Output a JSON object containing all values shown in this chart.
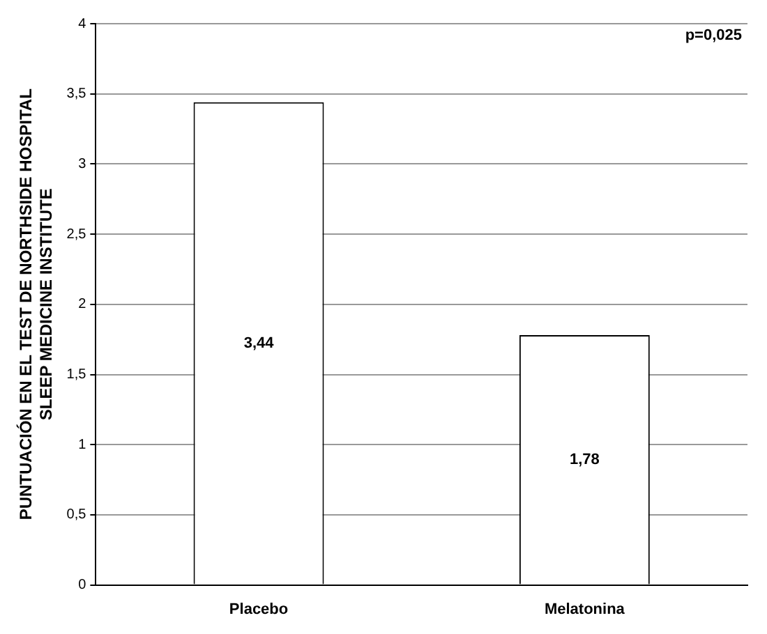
{
  "chart_data": {
    "type": "bar",
    "ylabel": "PUNTUACIÓN EN EL TEST DE NORTHSIDE HOSPITAL SLEEP MEDICINE INSTITUTE",
    "categories": [
      "Placebo",
      "Melatonina"
    ],
    "values": [
      3.44,
      1.78
    ],
    "value_labels": [
      "3,44",
      "1,78"
    ],
    "color": "#ffffff",
    "ylim": [
      0,
      4
    ],
    "yticks": [
      0,
      {
        "value": 0.5,
        "label": "0,5"
      },
      1,
      {
        "value": 1.5,
        "label": "1,5"
      },
      2,
      {
        "value": 2.5,
        "label": "2,5"
      },
      3,
      {
        "value": 3.5,
        "label": "3,5"
      },
      4
    ],
    "grid": "y",
    "annotations": [
      "p=0,025"
    ]
  }
}
